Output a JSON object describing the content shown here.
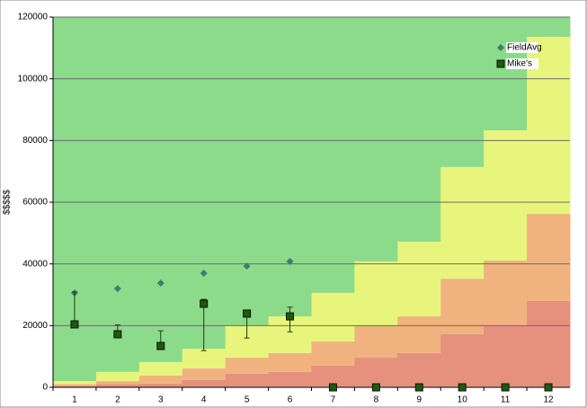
{
  "chart_data": {
    "type": "banded-scatter",
    "y_label": "$$$$$",
    "categories": [
      "1",
      "2",
      "3",
      "4",
      "5",
      "6",
      "7",
      "8",
      "9",
      "10",
      "11",
      "12"
    ],
    "ylim": [
      0,
      120000
    ],
    "yticks": [
      0,
      20000,
      40000,
      60000,
      80000,
      100000,
      120000
    ],
    "grid": true,
    "legend": "top-right",
    "bands": [
      {
        "color": "#e5917d",
        "values": [
          500,
          1000,
          1200,
          2400,
          4400,
          5000,
          7000,
          9600,
          11100,
          17200,
          20100,
          28000
        ]
      },
      {
        "color": "#f0b37f",
        "values": [
          500,
          1000,
          2600,
          3700,
          5200,
          6100,
          7900,
          10500,
          11900,
          18000,
          21000,
          28200
        ]
      },
      {
        "color": "#e8f57c",
        "values": [
          1000,
          3000,
          4400,
          6400,
          10500,
          11900,
          15700,
          20700,
          24200,
          36200,
          42200,
          57400
        ]
      },
      {
        "color": "#8cdb8b",
        "values": [
          118000,
          115000,
          111800,
          107500,
          99900,
          97000,
          89400,
          79200,
          72800,
          48600,
          36700,
          6400
        ]
      }
    ],
    "series": [
      {
        "name": "FieldAvg",
        "color": "#3b7f72",
        "marker": "diamond",
        "values": [
          30600,
          32000,
          33800,
          37000,
          39300,
          40800,
          null,
          null,
          null,
          null,
          null,
          null
        ]
      },
      {
        "name": "Mike's",
        "color": "#1f5a0c",
        "marker": "square",
        "values": [
          20400,
          17200,
          13400,
          27100,
          23900,
          23000,
          0,
          0,
          0,
          0,
          0,
          0
        ],
        "error_minus": [
          0,
          0,
          0,
          15200,
          7900,
          5000,
          null,
          null,
          null,
          null,
          null,
          null
        ],
        "error_plus": [
          10500,
          3000,
          4900,
          1400,
          0,
          3000,
          null,
          null,
          null,
          null,
          null,
          null
        ]
      }
    ]
  }
}
